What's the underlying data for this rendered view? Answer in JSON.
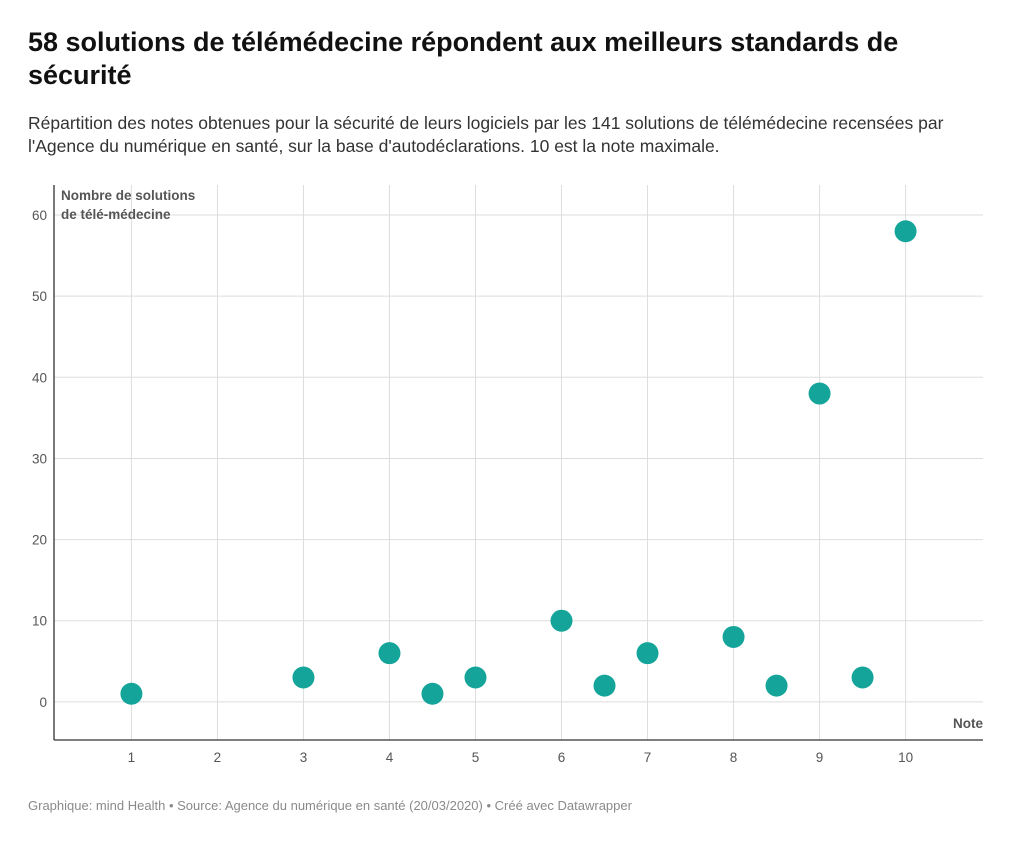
{
  "title": "58 solutions de télémédecine répondent aux meilleurs standards de sécurité",
  "subtitle": "Répartition des notes obtenues pour la sécurité de leurs logiciels par les 141 solutions de télémédecine recensées par l'Agence du numérique en santé, sur la base d'autodéclarations. 10 est la note maximale.",
  "footer": {
    "graphic": "Graphique: mind Health",
    "source": "Source: Agence du numérique en santé (20/03/2020)",
    "credit": "Créé avec Datawrapper",
    "separator": "•"
  },
  "chart_data": {
    "type": "scatter",
    "xlabel": "Note",
    "ylabel": [
      "Nombre de solutions",
      "de télé-médecine"
    ],
    "x_ticks": [
      1,
      2,
      3,
      4,
      5,
      6,
      7,
      8,
      9,
      10
    ],
    "y_ticks": [
      0,
      10,
      20,
      30,
      40,
      50,
      60
    ],
    "xlim": [
      0.1,
      10.9
    ],
    "ylim": [
      -4.7,
      63.7
    ],
    "grid": true,
    "point_color": "#14a49a",
    "points": [
      {
        "x": 1,
        "y": 1
      },
      {
        "x": 3,
        "y": 3
      },
      {
        "x": 4,
        "y": 6
      },
      {
        "x": 4.5,
        "y": 1
      },
      {
        "x": 5,
        "y": 3
      },
      {
        "x": 6,
        "y": 10
      },
      {
        "x": 6.5,
        "y": 2
      },
      {
        "x": 7,
        "y": 6
      },
      {
        "x": 8,
        "y": 8
      },
      {
        "x": 8.5,
        "y": 2
      },
      {
        "x": 9,
        "y": 38
      },
      {
        "x": 9.5,
        "y": 3
      },
      {
        "x": 10,
        "y": 58
      }
    ]
  }
}
